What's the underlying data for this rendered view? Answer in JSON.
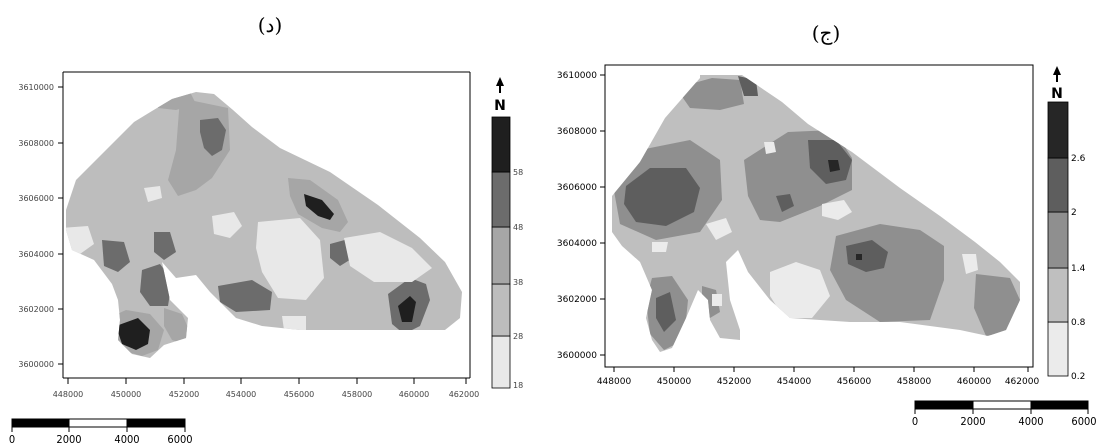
{
  "maps": [
    {
      "id": "left",
      "title": "(د)",
      "north_label": "N",
      "x_ticks": [
        "448000",
        "450000",
        "452000",
        "454000",
        "456000",
        "458000",
        "460000",
        "462000"
      ],
      "y_ticks": [
        "3610000",
        "3608000",
        "3606000",
        "3604000",
        "3602000",
        "3600000"
      ],
      "legend_breaks": [
        "18",
        "28",
        "38",
        "48",
        "58"
      ],
      "legend_colors": [
        "#e8e8e8",
        "#bdbdbd",
        "#a6a6a6",
        "#6c6c6c",
        "#1f1f1f"
      ]
    },
    {
      "id": "right",
      "title": "(ج)",
      "north_label": "N",
      "x_ticks": [
        "448000",
        "450000",
        "452000",
        "454000",
        "456000",
        "458000",
        "460000",
        "462000"
      ],
      "y_ticks": [
        "3610000",
        "3608000",
        "3606000",
        "3604000",
        "3602000",
        "3600000"
      ],
      "legend_breaks": [
        "0.2",
        "0.8",
        "1.4",
        "2",
        "2.6"
      ],
      "legend_colors": [
        "#ebebeb",
        "#bfbfbf",
        "#8f8f8f",
        "#5e5e5e",
        "#262626"
      ]
    }
  ],
  "scale_bars": [
    {
      "id": "left",
      "labels": [
        "0",
        "2000",
        "4000",
        "6000"
      ]
    },
    {
      "id": "right",
      "labels": [
        "0",
        "2000",
        "4000",
        "6000"
      ]
    }
  ]
}
